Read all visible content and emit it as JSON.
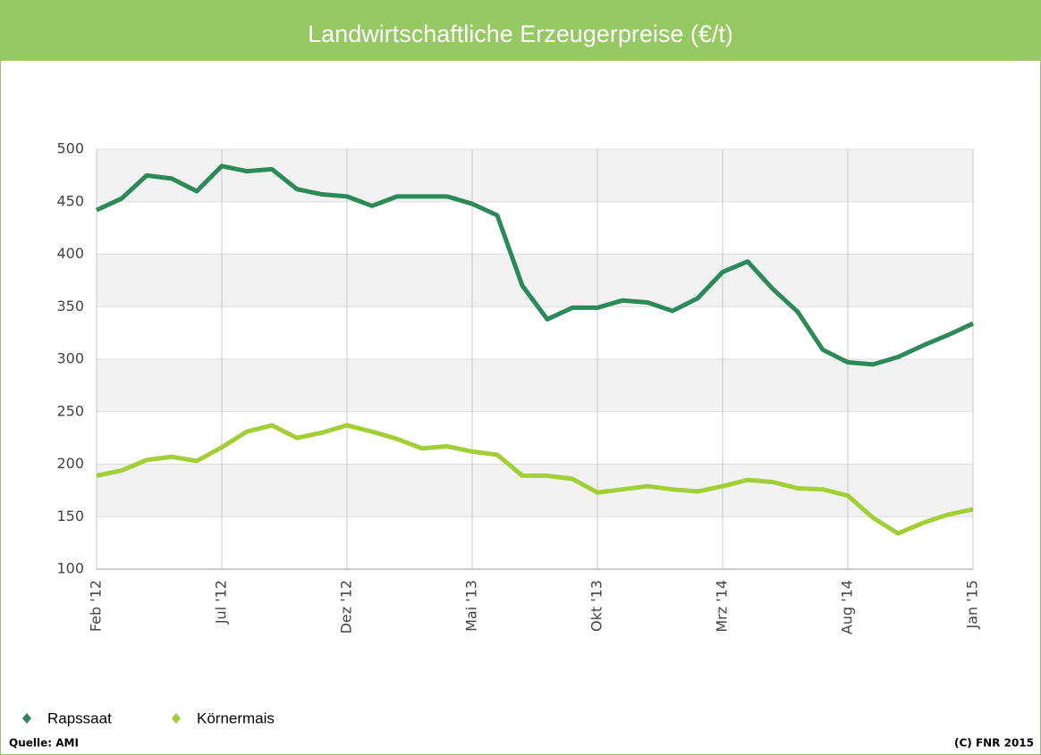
{
  "chart_data": {
    "type": "line",
    "title": "Landwirtschaftliche Erzeugerpreise (€/t)",
    "categories": [
      "Feb '12",
      null,
      null,
      null,
      null,
      "Jul '12",
      null,
      null,
      null,
      null,
      "Dez '12",
      null,
      null,
      null,
      null,
      "Mai '13",
      null,
      null,
      null,
      null,
      "Okt '13",
      null,
      null,
      null,
      null,
      "Mrz '14",
      null,
      null,
      null,
      null,
      "Aug '14",
      null,
      null,
      null,
      null,
      "Jan '15"
    ],
    "series": [
      {
        "name": "Rapssaat",
        "color": "#2b8a57",
        "values": [
          442,
          453,
          475,
          472,
          460,
          484,
          479,
          481,
          462,
          457,
          455,
          446,
          455,
          455,
          455,
          448,
          437,
          370,
          338,
          349,
          349,
          356,
          354,
          346,
          358,
          383,
          393,
          367,
          345,
          309,
          297,
          295,
          302,
          313,
          323,
          334
        ]
      },
      {
        "name": "Körnermais",
        "color": "#a2cf35",
        "values": [
          189,
          194,
          204,
          207,
          203,
          216,
          231,
          237,
          225,
          230,
          237,
          231,
          224,
          215,
          217,
          212,
          209,
          189,
          189,
          186,
          173,
          176,
          179,
          176,
          174,
          179,
          185,
          183,
          177,
          176,
          170,
          149,
          134,
          144,
          152,
          157
        ]
      }
    ],
    "ylim": [
      100,
      500
    ],
    "yticks": [
      100,
      150,
      200,
      250,
      300,
      350,
      400,
      450,
      500
    ],
    "grid": true,
    "source": "Quelle: AMI",
    "copyright": "(C) FNR 2015"
  }
}
